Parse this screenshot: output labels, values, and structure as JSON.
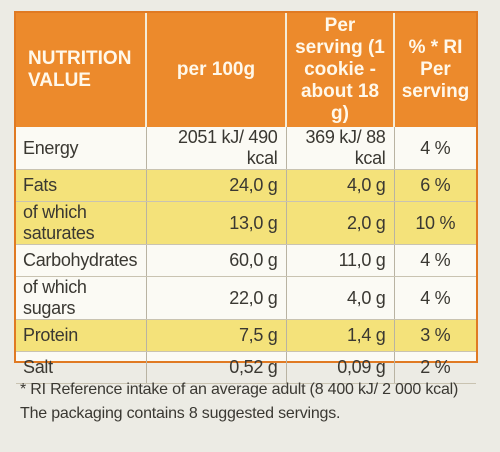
{
  "header": {
    "col1": "NUTRITION VALUE",
    "col2": "per 100g",
    "col3": "Per serving (1 cookie - about 18 g)",
    "col4": "% * RI Per serving"
  },
  "rows": [
    {
      "name": "Energy",
      "per100": "2051 kJ/ 490 kcal",
      "serving": "369 kJ/ 88 kcal",
      "ri": "4 %"
    },
    {
      "name": "Fats",
      "per100": "24,0 g",
      "serving": "4,0 g",
      "ri": "6 %"
    },
    {
      "name": "of which saturates",
      "per100": "13,0 g",
      "serving": "2,0 g",
      "ri": "10 %"
    },
    {
      "name": "Carbohydrates",
      "per100": "60,0 g",
      "serving": "11,0 g",
      "ri": "4 %"
    },
    {
      "name": "of which sugars",
      "per100": "22,0 g",
      "serving": "4,0 g",
      "ri": "4 %"
    },
    {
      "name": "Protein",
      "per100": "7,5 g",
      "serving": "1,4 g",
      "ri": "3 %"
    },
    {
      "name": "Salt",
      "per100": "0,52 g",
      "serving": "0,09 g",
      "ri": "2 %"
    }
  ],
  "footer": {
    "note": "* RI Reference intake of an average adult (8 400 kJ/ 2 000 kcal)",
    "servings": "The packaging contains 8 suggested servings."
  },
  "colors": {
    "header_bg": "#ec8a2c",
    "highlight": "#f4e27a",
    "border": "#e07a23"
  }
}
